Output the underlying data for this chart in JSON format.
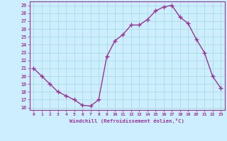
{
  "x": [
    0,
    1,
    2,
    3,
    4,
    5,
    6,
    7,
    8,
    9,
    10,
    11,
    12,
    13,
    14,
    15,
    16,
    17,
    18,
    19,
    20,
    21,
    22,
    23
  ],
  "y": [
    21,
    20,
    19,
    18,
    17.5,
    17,
    16.3,
    16.2,
    17,
    22.5,
    24.5,
    25.3,
    26.5,
    26.5,
    27.2,
    28.3,
    28.8,
    29,
    27.5,
    26.7,
    24.7,
    23,
    20,
    18.5
  ],
  "line_color": "#993399",
  "marker": "+",
  "marker_size": 4,
  "bg_color": "#cceeff",
  "grid_color": "#aadddd",
  "xlabel": "Windchill (Refroidissement éolien,°C)",
  "xlabel_color": "#993399",
  "ylabel_ticks": [
    16,
    17,
    18,
    19,
    20,
    21,
    22,
    23,
    24,
    25,
    26,
    27,
    28,
    29
  ],
  "xtick_labels": [
    "0",
    "1",
    "2",
    "3",
    "4",
    "5",
    "6",
    "7",
    "8",
    "9",
    "10",
    "11",
    "12",
    "13",
    "14",
    "15",
    "16",
    "17",
    "18",
    "19",
    "20",
    "21",
    "22",
    "23"
  ],
  "ylim": [
    15.7,
    29.5
  ],
  "xlim": [
    -0.5,
    23.5
  ]
}
